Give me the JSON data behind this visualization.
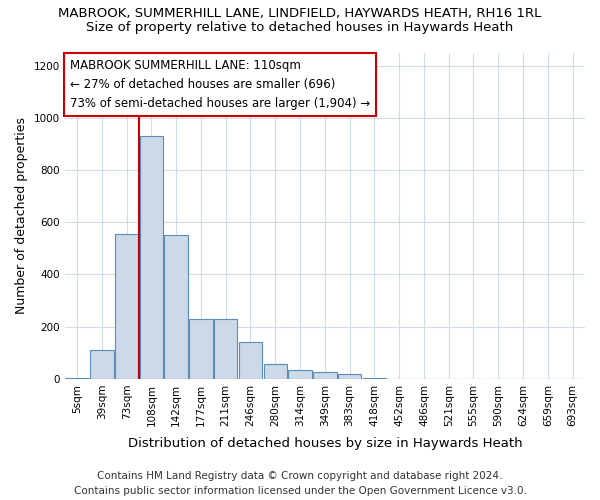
{
  "title1": "MABROOK, SUMMERHILL LANE, LINDFIELD, HAYWARDS HEATH, RH16 1RL",
  "title2": "Size of property relative to detached houses in Haywards Heath",
  "xlabel": "Distribution of detached houses by size in Haywards Heath",
  "ylabel": "Number of detached properties",
  "categories": [
    "5sqm",
    "39sqm",
    "73sqm",
    "108sqm",
    "142sqm",
    "177sqm",
    "211sqm",
    "246sqm",
    "280sqm",
    "314sqm",
    "349sqm",
    "383sqm",
    "418sqm",
    "452sqm",
    "486sqm",
    "521sqm",
    "555sqm",
    "590sqm",
    "624sqm",
    "659sqm",
    "693sqm"
  ],
  "values": [
    5,
    110,
    555,
    930,
    550,
    230,
    230,
    140,
    58,
    35,
    25,
    18,
    5,
    0,
    0,
    0,
    0,
    0,
    0,
    0,
    0
  ],
  "bar_color": "#ccd9e8",
  "bar_edge_color": "#5b8db8",
  "red_line_index": 3,
  "annotation_line1": "MABROOK SUMMERHILL LANE: 110sqm",
  "annotation_line2": "← 27% of detached houses are smaller (696)",
  "annotation_line3": "73% of semi-detached houses are larger (1,904) →",
  "annotation_box_color": "white",
  "annotation_box_edge_color": "#cc0000",
  "red_line_color": "#cc0000",
  "ylim": [
    0,
    1250
  ],
  "yticks": [
    0,
    200,
    400,
    600,
    800,
    1000,
    1200
  ],
  "footer1": "Contains HM Land Registry data © Crown copyright and database right 2024.",
  "footer2": "Contains public sector information licensed under the Open Government Licence v3.0.",
  "background_color": "#ffffff",
  "plot_background_color": "#ffffff",
  "grid_color": "#d0dce8",
  "title1_fontsize": 9.5,
  "title2_fontsize": 9.5,
  "tick_fontsize": 7.5,
  "ylabel_fontsize": 9,
  "xlabel_fontsize": 9.5,
  "footer_fontsize": 7.5,
  "annotation_fontsize": 8.5
}
